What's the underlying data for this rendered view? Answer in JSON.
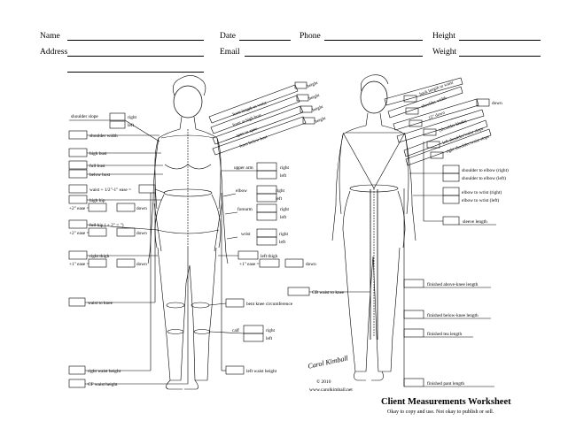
{
  "header": {
    "name": "Name",
    "date": "Date",
    "phone": "Phone",
    "height": "Height",
    "address": "Address",
    "email": "Email",
    "weight": "Weight"
  },
  "front_labels": {
    "shoulder_slope": "shoulder slope",
    "right": "right",
    "left": "left",
    "shoulder_width": "shoulder width",
    "high_bust": "high bust",
    "full_bust": "full bust",
    "below_bust": "below bust",
    "waist_ease": "waist + 1/2\"-1\" ease =",
    "high_hip": "high hip",
    "ease_2": "+2\" ease =",
    "down": "down",
    "full_hip": "full hip ( + 2\" = \")",
    "ease_2b": "+2\" ease =",
    "right_thigh": "right thigh",
    "ease_1": "+1\" ease =",
    "waist_to_knee": "waist to knee",
    "right_waist_height": "right waist height",
    "cf_waist_height": "CF waist height",
    "front_length_to_waist": "front length to waist",
    "front_at_high_bust": "front at high bust",
    "apex_to_apex": "apex to apex",
    "front_below_bust": "front below bust",
    "height": "height",
    "upper_arm": "upper arm",
    "elbow": "elbow",
    "forearm": "forearm",
    "wrist": "wrist",
    "left_thigh": "left thigh",
    "ease_1b": "+1\" ease =",
    "bent_knee": "bent knee circumference",
    "calf": "calf",
    "left_waist_height": "left waist height",
    "cb_waist_to_knee": "CB waist to knee"
  },
  "back_labels": {
    "back_length_to_waist": "back length to waist",
    "shoulder_width": "shoulder width",
    "down": "down",
    "fifteen_down": "15\" down",
    "shoulder_blade": "(shoulder blade)",
    "left_shoulder_waist_slope": "left shoulder/waist slope",
    "right_shoulder_waist_slope": "right shoulder/waist slope",
    "shoulder_to_elbow_right": "shoulder to elbow (right)",
    "shoulder_to_elbow_left": "shoulder to elbow (left)",
    "elbow_to_wrist_right": "elbow to wrist (right)",
    "elbow_to_wrist_left": "elbow to wrist (left)",
    "sleeve_length": "sleeve length",
    "finished_above_knee": "finished above-knee length",
    "finished_below_knee": "finished below-knee length",
    "finished_tea": "finished tea length",
    "finished_pant": "finished pant length"
  },
  "footer": {
    "signature": "Carol Kimball",
    "copyright": "© 2010",
    "website": "www.carolkimball.net",
    "title": "Client Measurements Worksheet",
    "subtitle": "Okay to copy and use. Not okay to publish or sell."
  }
}
